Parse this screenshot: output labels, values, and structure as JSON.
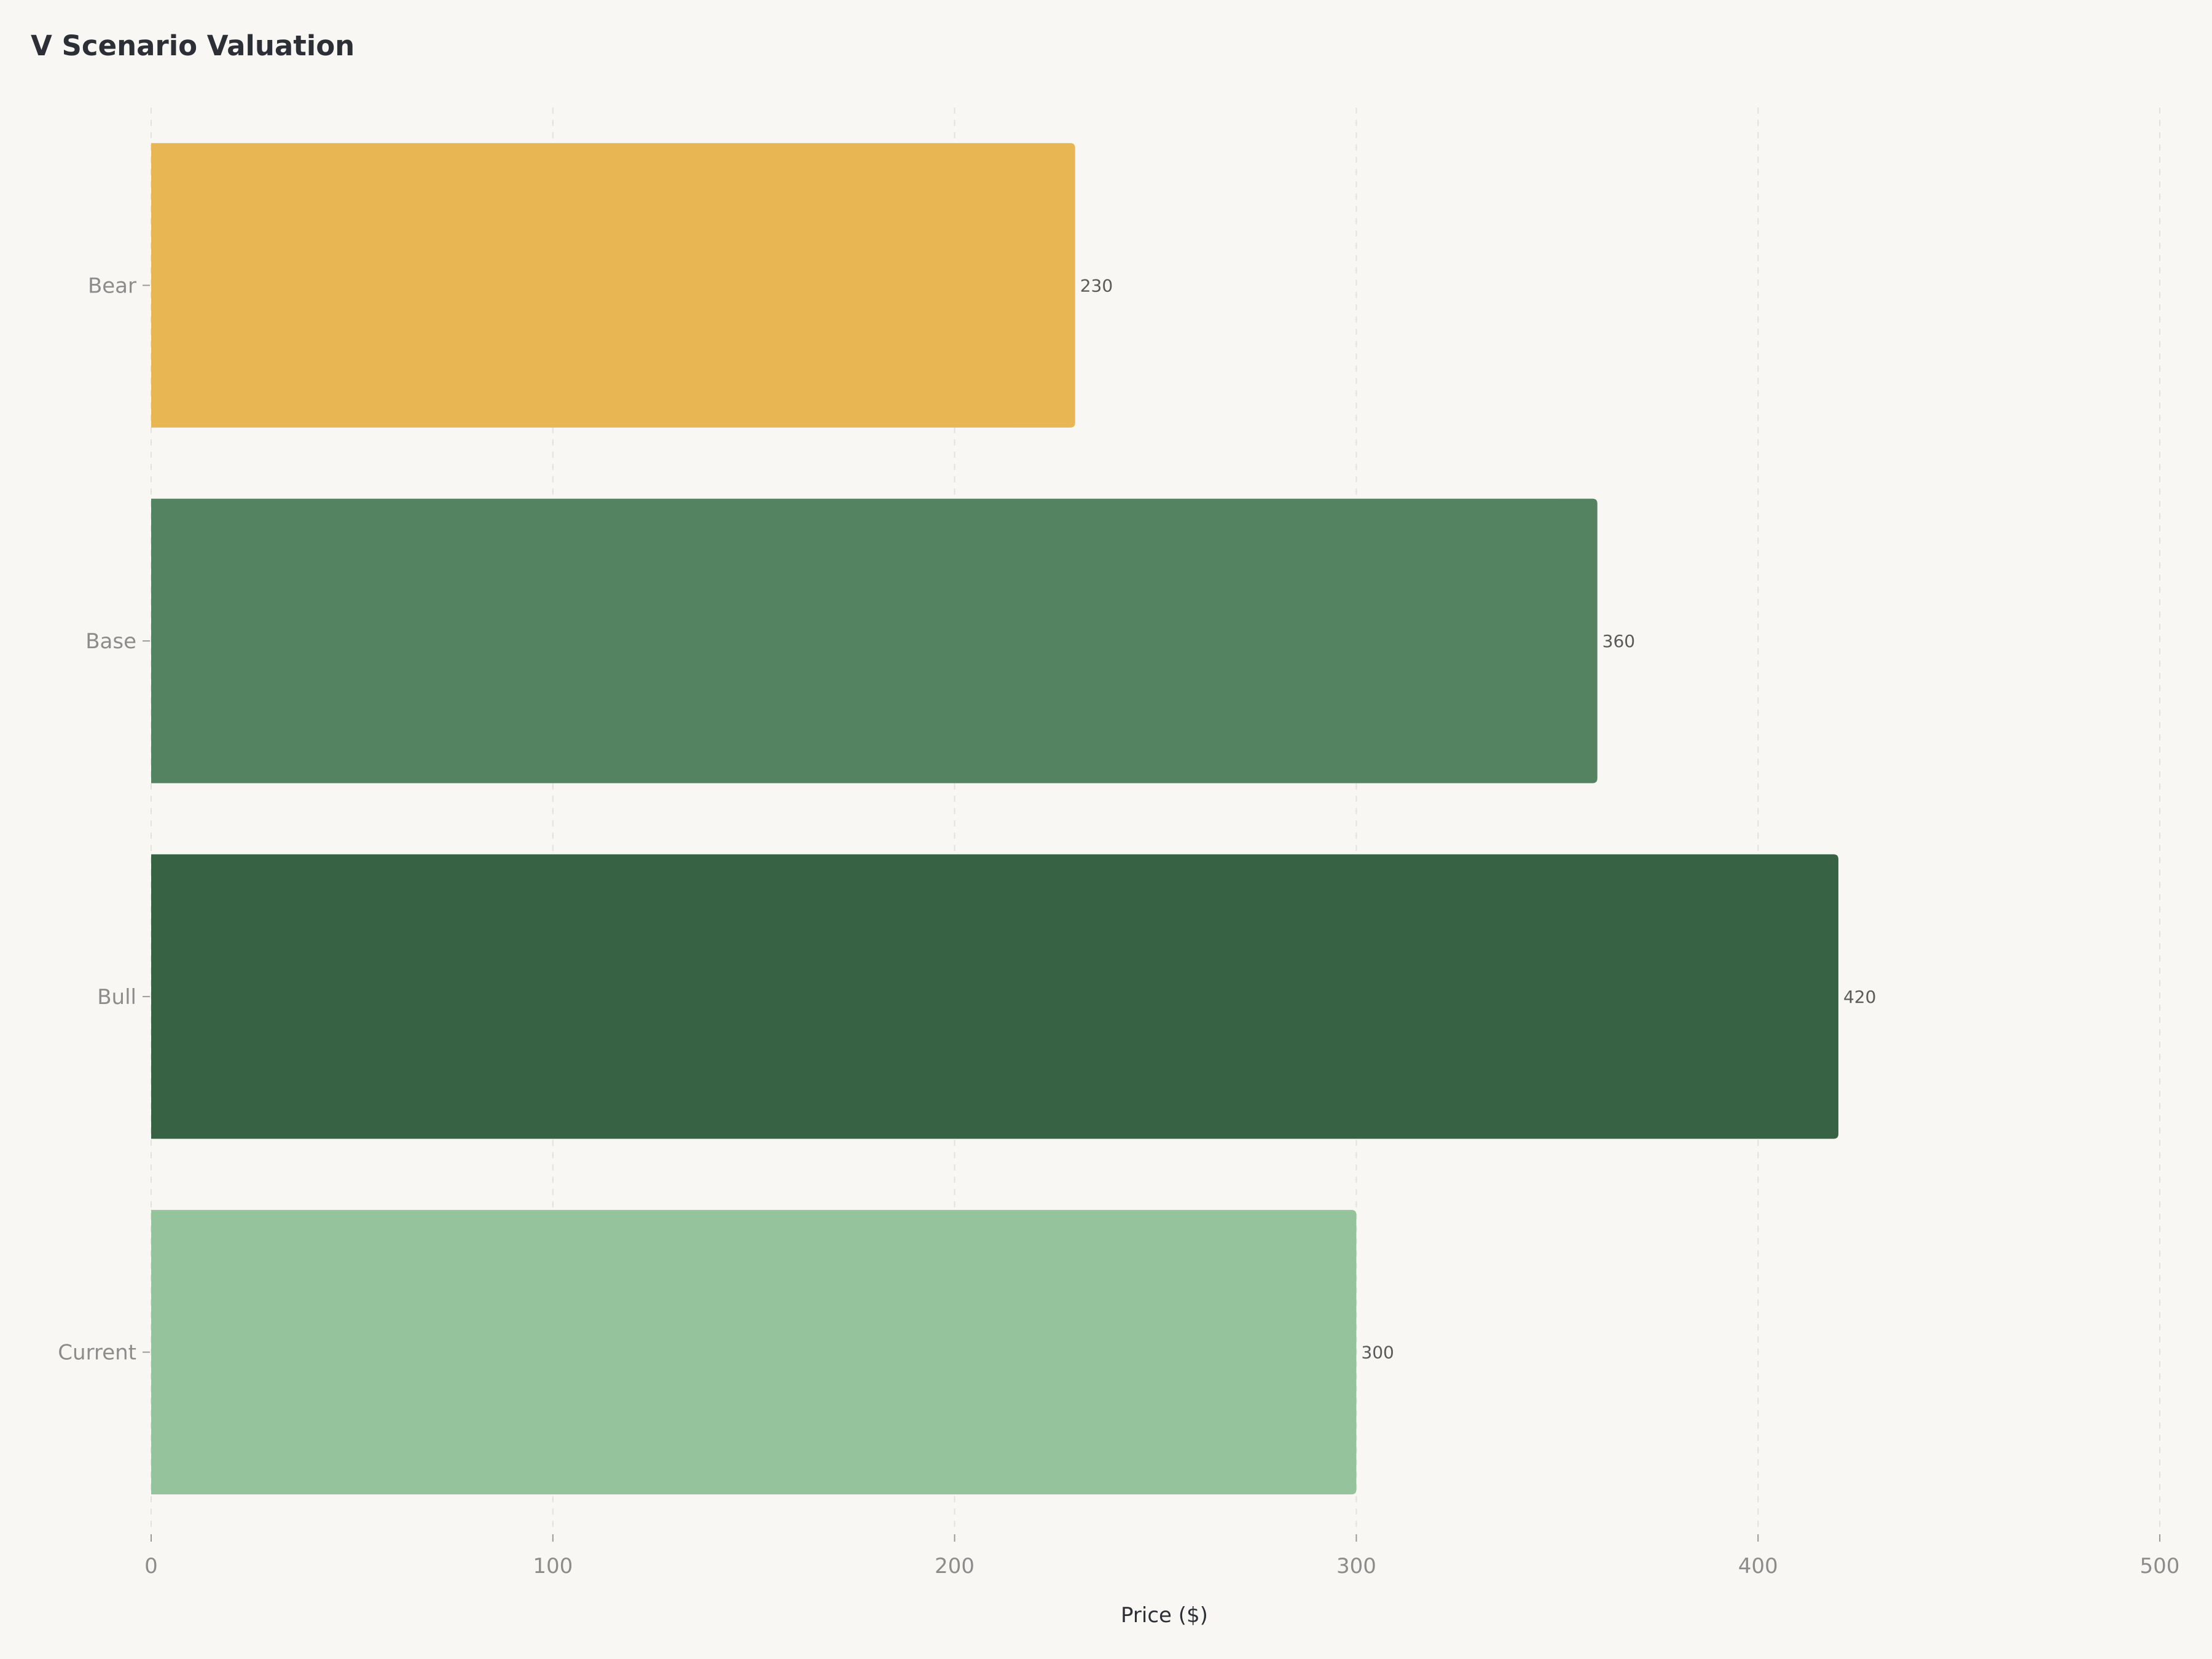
{
  "chart_data": {
    "type": "bar",
    "orientation": "horizontal",
    "title": "V Scenario Valuation",
    "xlabel": "Price ($)",
    "ylabel": "",
    "xlim": [
      0,
      500
    ],
    "xticks": [
      0,
      100,
      200,
      300,
      400,
      500
    ],
    "grid": "vertical dashed",
    "categories": [
      "Bear",
      "Base",
      "Bull",
      "Current"
    ],
    "values": [
      230,
      360,
      420,
      300
    ],
    "value_labels": [
      "230",
      "360",
      "420",
      "300"
    ],
    "colors": [
      "#e8b754",
      "#548361",
      "#376244",
      "#95c39c"
    ]
  }
}
